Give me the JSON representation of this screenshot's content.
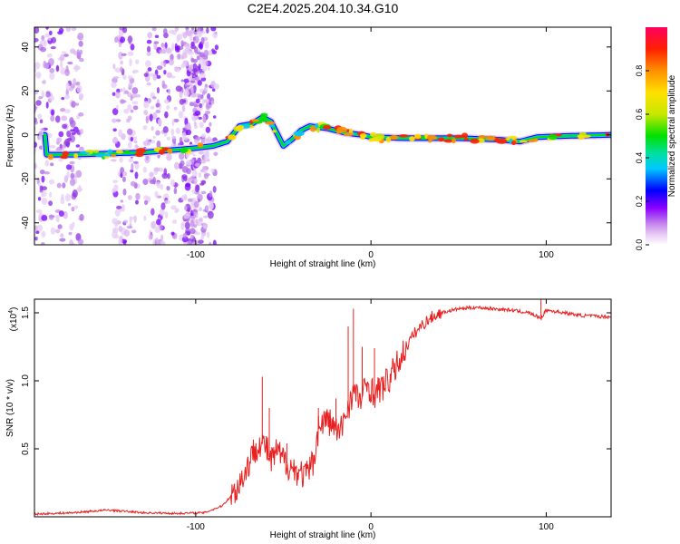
{
  "title": "C2E4.2025.204.10.34.G10",
  "chart_data": [
    {
      "type": "heatmap",
      "xlabel": "Height of straight line (km)",
      "ylabel": "Frequency (Hz)",
      "xlim": [
        -192,
        137
      ],
      "ylim": [
        -50,
        49
      ],
      "x_ticks": [
        -100,
        0,
        100
      ],
      "y_ticks": [
        -40,
        -20,
        0,
        20,
        40
      ],
      "colorbar": {
        "label": "Normalized spectral amplitude",
        "range": [
          0,
          1
        ],
        "ticks": [
          0.0,
          0.2,
          0.4,
          0.6,
          0.8
        ],
        "colors": [
          "#ffffff",
          "#e8c8f4",
          "#c080ec",
          "#8a00ff",
          "#0000ff",
          "#00c8ff",
          "#00e0a0",
          "#00e000",
          "#c8e800",
          "#ffe000",
          "#ff9000",
          "#ff2000",
          "#ff0060"
        ]
      },
      "ridge": [
        {
          "x": -185,
          "f": -9
        },
        {
          "x": -170,
          "f": -9
        },
        {
          "x": -150,
          "f": -8.5
        },
        {
          "x": -130,
          "f": -8
        },
        {
          "x": -115,
          "f": -7
        },
        {
          "x": -100,
          "f": -6
        },
        {
          "x": -90,
          "f": -5
        },
        {
          "x": -82,
          "f": -3
        },
        {
          "x": -75,
          "f": 4
        },
        {
          "x": -68,
          "f": 5
        },
        {
          "x": -62,
          "f": 8
        },
        {
          "x": -57,
          "f": 6
        },
        {
          "x": -50,
          "f": -5
        },
        {
          "x": -45,
          "f": -2
        },
        {
          "x": -40,
          "f": 2
        },
        {
          "x": -35,
          "f": 4
        },
        {
          "x": -25,
          "f": 3
        },
        {
          "x": -15,
          "f": 1
        },
        {
          "x": -5,
          "f": 0
        },
        {
          "x": 0,
          "f": -1
        },
        {
          "x": 20,
          "f": -1.5
        },
        {
          "x": 50,
          "f": -1.5
        },
        {
          "x": 70,
          "f": -2
        },
        {
          "x": 85,
          "f": -3
        },
        {
          "x": 95,
          "f": -1
        },
        {
          "x": 110,
          "f": -0.5
        },
        {
          "x": 137,
          "f": 0
        }
      ],
      "noise_bands_x": [
        -188,
        -172,
        -140,
        -122,
        -107,
        -100,
        -95
      ]
    },
    {
      "type": "line",
      "xlabel": "Height of straight line (km)",
      "ylabel": "SNR (10 * v/v)",
      "y_multiplier_label": "(x10",
      "y_multiplier_exponent": "4",
      "xlim": [
        -192,
        137
      ],
      "ylim": [
        0,
        16000
      ],
      "x_ticks": [
        -100,
        0,
        100
      ],
      "y_ticks": [
        5000,
        10000,
        15000
      ],
      "y_tick_labels": [
        "0.5",
        "1.0",
        "1.5"
      ],
      "series": [
        {
          "color": "#e82020",
          "x": [
            -192,
            -170,
            -150,
            -130,
            -110,
            -95,
            -85,
            -78,
            -72,
            -68,
            -64,
            -60,
            -57,
            -54,
            -50,
            -47,
            -44,
            -40,
            -37,
            -33,
            -30,
            -26,
            -22,
            -18,
            -14,
            -10,
            -6,
            -2,
            2,
            6,
            10,
            15,
            20,
            25,
            30,
            35,
            40,
            50,
            60,
            70,
            80,
            90,
            97,
            100,
            110,
            120,
            137
          ],
          "y": [
            200,
            300,
            500,
            300,
            250,
            300,
            800,
            1800,
            3200,
            4500,
            5500,
            5200,
            4000,
            4800,
            4200,
            3800,
            3500,
            3200,
            3000,
            4000,
            6500,
            7200,
            6800,
            6000,
            7800,
            9200,
            8500,
            9800,
            9000,
            9500,
            10000,
            11200,
            12500,
            13500,
            14200,
            14700,
            15000,
            15300,
            15400,
            15300,
            15200,
            15000,
            14600,
            15200,
            15000,
            14800,
            14700
          ]
        }
      ],
      "spikes": [
        {
          "x": -62,
          "y": 10300
        },
        {
          "x": -58,
          "y": 8000
        },
        {
          "x": -48,
          "y": 5400
        },
        {
          "x": -30,
          "y": 8000
        },
        {
          "x": -20,
          "y": 8700
        },
        {
          "x": -13,
          "y": 14000
        },
        {
          "x": -10,
          "y": 15300
        },
        {
          "x": -5,
          "y": 12500
        },
        {
          "x": 2,
          "y": 12400
        },
        {
          "x": 97,
          "y": 16000
        }
      ]
    }
  ]
}
